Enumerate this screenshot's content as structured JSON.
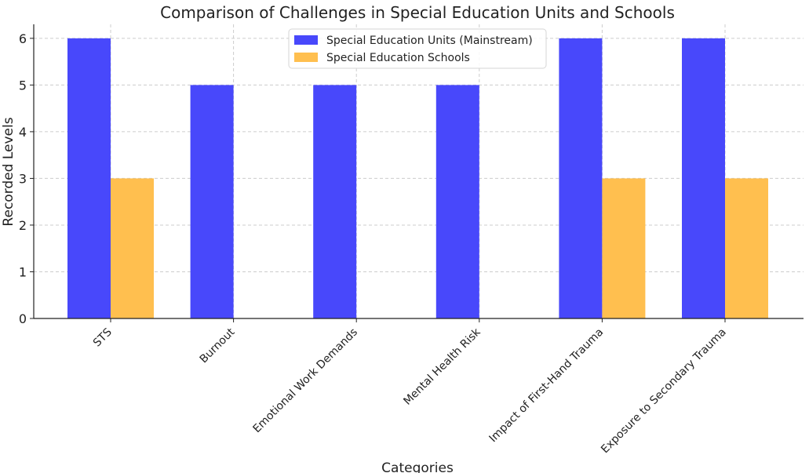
{
  "chart_data": {
    "type": "bar",
    "title": "Comparison of Challenges in Special Education Units and Schools",
    "xlabel": "Categories",
    "ylabel": "Recorded Levels",
    "categories": [
      "STS",
      "Burnout",
      "Emotional Work Demands",
      "Mental Health Risk",
      "Impact of First-Hand Trauma",
      "Exposure to Secondary Trauma"
    ],
    "series": [
      {
        "name": "Special Education Units (Mainstream)",
        "color": "#4848fb",
        "values": [
          6,
          5,
          5,
          5,
          6,
          6
        ]
      },
      {
        "name": "Special Education Schools",
        "color": "#ffbf4f",
        "values": [
          3,
          0,
          0,
          0,
          3,
          3
        ]
      }
    ],
    "ylim": [
      0,
      6.3
    ],
    "yticks": [
      0,
      1,
      2,
      3,
      4,
      5,
      6
    ],
    "grid": true,
    "legend_position": "top-center"
  }
}
